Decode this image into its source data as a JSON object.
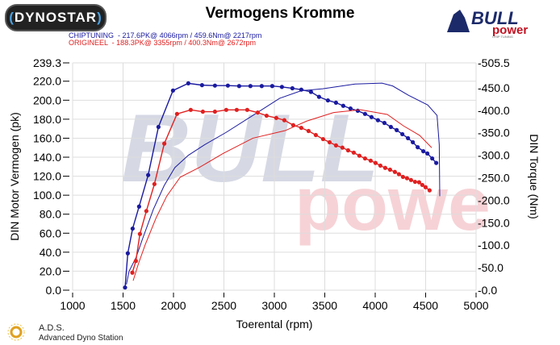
{
  "header": {
    "title": "Vermogens Kromme",
    "logo_left": "DYNOSTAR",
    "logo_right": "BULL power CHIP TUNING"
  },
  "legend": [
    {
      "label": "CHIPTUNING  - 217.6PK@ 4066rpm / 459.6Nm@ 2217rpm",
      "color": "#1a1aa0"
    },
    {
      "label": "ORIGINEEL  - 188.3PK@ 3355rpm / 400.3Nm@ 2672rpm",
      "color": "#e02020"
    }
  ],
  "footer": {
    "brand": "A.D.S.",
    "subtitle": "Advanced Dyno Station"
  },
  "chart_data": {
    "type": "line",
    "title": "Vermogens Kromme",
    "xlabel": "Toerental (rpm)",
    "ylabel": "DIN Motor Vermogen (pk)",
    "y2label": "DIN Torque (Nm)",
    "xlim": [
      1000,
      5000
    ],
    "ylim": [
      0,
      239.3
    ],
    "y2lim": [
      0,
      505.5
    ],
    "xticks": [
      "1000",
      "1500",
      "2000",
      "2500",
      "3000",
      "3500",
      "4000",
      "4500",
      "5000"
    ],
    "yticks": [
      "0.0",
      "20.0",
      "40.0",
      "60.0",
      "80.0",
      "100.0",
      "120.0",
      "140.0",
      "160.0",
      "180.0",
      "200.0",
      "220.0",
      "239.3"
    ],
    "y2ticks": [
      "-0.0",
      "-50.0",
      "-100.0",
      "-150.0",
      "-200.0",
      "-250.0",
      "-300.0",
      "-350.0",
      "-400.0",
      "-450.0",
      "-505.5"
    ],
    "grid": true,
    "series": [
      {
        "name": "CHIPTUNING",
        "kind": "power",
        "axis": "left",
        "color": "#1a1aa0",
        "markers": false,
        "x": [
          1533,
          1560,
          1627,
          1693,
          1800,
          1907,
          2013,
          2147,
          2307,
          2520,
          2787,
          3053,
          3267,
          3480,
          3800,
          4067,
          4173,
          4333,
          4520,
          4613,
          4635,
          4640
        ],
        "y": [
          6,
          20,
          34,
          54,
          85,
          110,
          129,
          142,
          153,
          166,
          184,
          202,
          210,
          212,
          217,
          218,
          215,
          205,
          195,
          184,
          153,
          99
        ]
      },
      {
        "name": "CHIPTUNING",
        "kind": "torque",
        "axis": "right",
        "color": "#1a1aa0",
        "markers": true,
        "x": [
          1520,
          1547,
          1595,
          1659,
          1749,
          1851,
          1995,
          2147,
          2283,
          2411,
          2539,
          2651,
          2763,
          2875,
          2979,
          3075,
          3179,
          3267,
          3363,
          3443,
          3531,
          3611,
          3683,
          3755,
          3827,
          3899,
          3963,
          4027,
          4091,
          4155,
          4213,
          4269,
          4325,
          4373,
          4421,
          4477,
          4517,
          4565,
          4605
        ],
        "y": [
          6,
          82,
          137,
          186,
          256,
          363,
          444,
          460,
          456,
          455,
          455,
          454,
          454,
          454,
          454,
          452,
          449,
          446,
          441,
          430,
          422,
          417,
          410,
          404,
          399,
          392,
          385,
          378,
          372,
          363,
          356,
          347,
          338,
          329,
          318,
          309,
          304,
          293,
          283
        ]
      },
      {
        "name": "ORIGINEEL",
        "kind": "power",
        "axis": "left",
        "color": "#e02020",
        "markers": false,
        "x": [
          1600,
          1653,
          1720,
          1827,
          1933,
          2067,
          2253,
          2493,
          2787,
          3107,
          3320,
          3587,
          3853,
          4120,
          4280,
          4440,
          4560
        ],
        "y": [
          10,
          28,
          48,
          76,
          99,
          119,
          129,
          144,
          160,
          168,
          178,
          187,
          190,
          185,
          173,
          163,
          150
        ]
      },
      {
        "name": "ORIGINEEL",
        "kind": "torque",
        "axis": "right",
        "color": "#e02020",
        "markers": true,
        "x": [
          1592,
          1627,
          1667,
          1731,
          1811,
          1909,
          2035,
          2171,
          2291,
          2411,
          2523,
          2627,
          2731,
          2835,
          2923,
          3019,
          3099,
          3187,
          3267,
          3339,
          3411,
          3483,
          3547,
          3611,
          3675,
          3731,
          3787,
          3843,
          3899,
          3955,
          4003,
          4051,
          4099,
          4147,
          4195,
          4235,
          4275,
          4315,
          4355,
          4395,
          4435,
          4467,
          4499,
          4539
        ],
        "y": [
          39,
          65,
          125,
          176,
          236,
          326,
          392,
          401,
          397,
          397,
          401,
          401,
          401,
          395,
          388,
          383,
          378,
          367,
          361,
          354,
          345,
          336,
          329,
          322,
          317,
          311,
          306,
          299,
          293,
          288,
          283,
          277,
          272,
          268,
          263,
          258,
          252,
          249,
          245,
          241,
          240,
          234,
          229,
          222
        ]
      }
    ]
  }
}
